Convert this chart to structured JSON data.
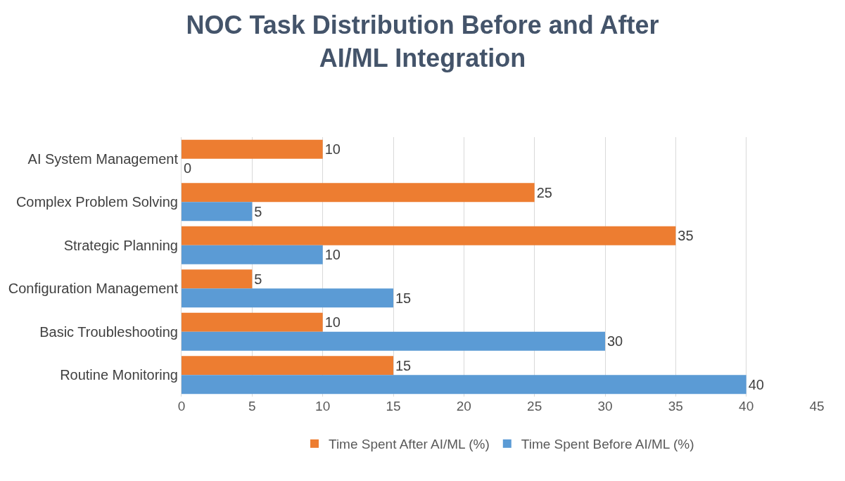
{
  "chart_data": {
    "type": "bar",
    "orientation": "horizontal",
    "title": "NOC Task Distribution Before and After\nAI/ML Integration",
    "categories": [
      "AI System Management",
      "Complex Problem Solving",
      "Strategic Planning",
      "Configuration Management",
      "Basic Troubleshooting",
      "Routine Monitoring"
    ],
    "series": [
      {
        "name": "Time Spent After AI/ML (%)",
        "color": "#ed7d31",
        "values": [
          10,
          25,
          35,
          5,
          10,
          15
        ]
      },
      {
        "name": "Time Spent Before AI/ML (%)",
        "color": "#5b9bd5",
        "values": [
          0,
          5,
          10,
          15,
          30,
          40
        ]
      }
    ],
    "xlim": [
      0,
      45
    ],
    "xticks": [
      0,
      5,
      10,
      15,
      20,
      25,
      30,
      35,
      40,
      45
    ],
    "grid": "x",
    "legend": "bottom",
    "data_labels": true
  }
}
